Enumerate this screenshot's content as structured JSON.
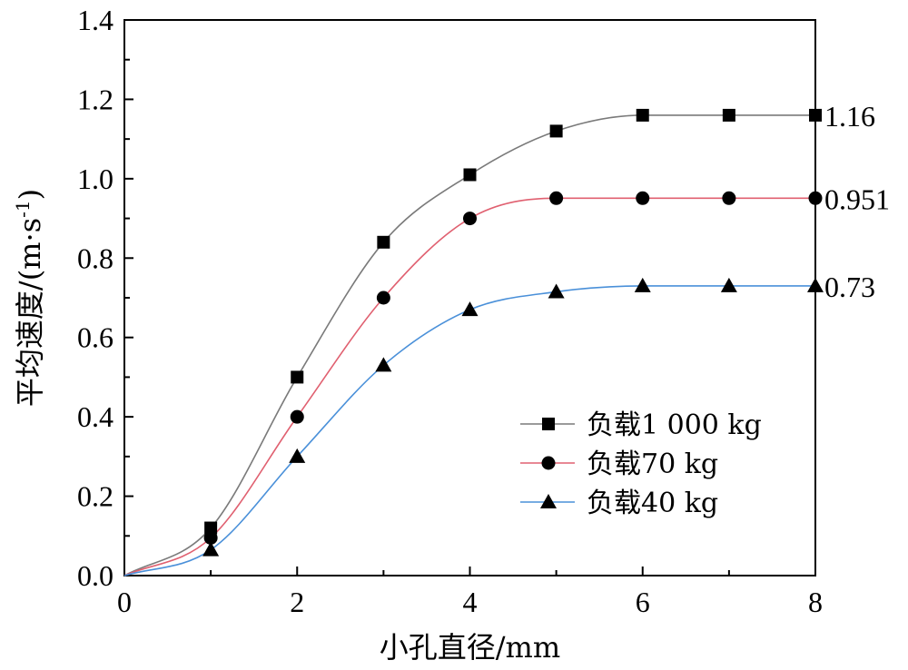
{
  "chart_data": {
    "type": "line",
    "xlabel": "小孔直径/mm",
    "ylabel": "平均速度/(m·s",
    "ylabel_sup": "-1",
    "ylabel_close": ")",
    "xlim": [
      0,
      8
    ],
    "ylim": [
      0,
      1.4
    ],
    "xticks": [
      0,
      2,
      4,
      6,
      8
    ],
    "yticks": [
      0.0,
      0.2,
      0.4,
      0.6,
      0.8,
      1.0,
      1.2,
      1.4
    ],
    "xtick_labels": [
      "0",
      "2",
      "4",
      "6",
      "8"
    ],
    "ytick_labels": [
      "0.0",
      "0.2",
      "0.4",
      "0.6",
      "0.8",
      "1.0",
      "1.2",
      "1.4"
    ],
    "grid": false,
    "legend_position": "center-right",
    "series": [
      {
        "name": "负载1 000 kg",
        "marker": "square",
        "color": "#7a7a7a",
        "end_label": "1.16",
        "x": [
          1,
          2,
          3,
          4,
          5,
          6,
          7,
          8
        ],
        "values": [
          0.12,
          0.5,
          0.84,
          1.01,
          1.12,
          1.16,
          1.16,
          1.16
        ]
      },
      {
        "name": "负载70 kg",
        "marker": "circle",
        "color": "#e06070",
        "end_label": "0.951",
        "x": [
          1,
          2,
          3,
          4,
          5,
          6,
          7,
          8
        ],
        "values": [
          0.095,
          0.4,
          0.7,
          0.9,
          0.951,
          0.951,
          0.951,
          0.951
        ]
      },
      {
        "name": "负载40 kg",
        "marker": "triangle",
        "color": "#4a90d9",
        "end_label": "0.73",
        "x": [
          1,
          2,
          3,
          4,
          5,
          6,
          7,
          8
        ],
        "values": [
          0.065,
          0.3,
          0.53,
          0.67,
          0.715,
          0.73,
          0.73,
          0.73
        ]
      }
    ]
  }
}
